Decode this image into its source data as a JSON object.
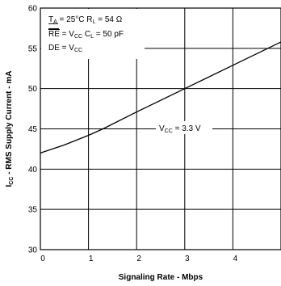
{
  "chart_data": {
    "type": "line",
    "xlabel": "Signaling Rate - Mbps",
    "ylabel": {
      "main": "I",
      "sub": "CC",
      "rest": " - RMS Supply Current - mA"
    },
    "xlim": [
      0,
      5
    ],
    "ylim": [
      30,
      60
    ],
    "x_ticks": [
      "0",
      "1",
      "2",
      "3",
      "4"
    ],
    "y_ticks": [
      "30",
      "35",
      "40",
      "45",
      "50",
      "55",
      "60"
    ],
    "grid": true,
    "series": [
      {
        "name": "VCC = 3.3 V",
        "x": [
          0,
          0.5,
          1,
          1.3,
          2,
          3,
          4,
          5
        ],
        "y": [
          42,
          43,
          44.2,
          45,
          47.1,
          50,
          52.9,
          55.8
        ]
      }
    ],
    "annotations": {
      "series_label": {
        "pre": "V",
        "sub": "CC",
        "post": " = 3.3 V"
      },
      "conditions": [
        [
          {
            "t": "T"
          },
          {
            "t": "A",
            "sub": true
          },
          {
            "t": " = 25°C    R"
          },
          {
            "t": "L",
            "sub": true
          },
          {
            "t": " = 54 Ω"
          }
        ],
        [
          {
            "t": "RE",
            "overline": true
          },
          {
            "t": " = V"
          },
          {
            "t": "CC",
            "sub": true
          },
          {
            "t": "   C"
          },
          {
            "t": "L",
            "sub": true
          },
          {
            "t": " = 50 pF"
          }
        ],
        [
          {
            "t": "DE = V"
          },
          {
            "t": "CC",
            "sub": true
          }
        ]
      ]
    }
  }
}
